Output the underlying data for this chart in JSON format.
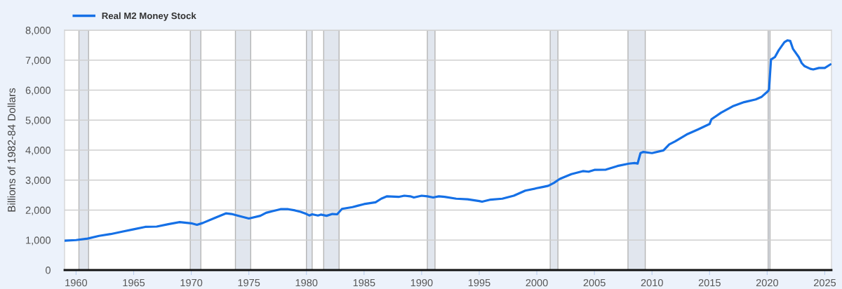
{
  "chart_data": {
    "type": "line",
    "ylabel": "Billions of 1982-84 Dollars",
    "x": [
      "1959-01",
      "1960-01",
      "1961-01",
      "1962-01",
      "1963-01",
      "1964-01",
      "1965-01",
      "1966-01",
      "1967-01",
      "1968-01",
      "1969-01",
      "1970-01",
      "1970-07",
      "1971-01",
      "1972-01",
      "1973-01",
      "1973-07",
      "1974-01",
      "1975-01",
      "1976-01",
      "1976-07",
      "1977-01",
      "1977-10",
      "1978-06",
      "1979-01",
      "1979-07",
      "1980-01",
      "1980-04",
      "1980-07",
      "1981-01",
      "1981-04",
      "1981-10",
      "1982-04",
      "1982-09",
      "1983-02",
      "1984-01",
      "1985-01",
      "1986-01",
      "1986-07",
      "1987-01",
      "1988-01",
      "1988-07",
      "1989-01",
      "1989-05",
      "1990-01",
      "1990-07",
      "1991-01",
      "1991-07",
      "1992-01",
      "1993-01",
      "1994-01",
      "1995-01",
      "1995-04",
      "1996-01",
      "1997-01",
      "1998-01",
      "1999-01",
      "2000-01",
      "2000-07",
      "2001-01",
      "2001-07",
      "2002-01",
      "2003-01",
      "2004-01",
      "2004-07",
      "2005-01",
      "2006-01",
      "2007-01",
      "2008-01",
      "2008-07",
      "2008-10",
      "2009-01",
      "2009-04",
      "2010-01",
      "2011-01",
      "2011-07",
      "2012-01",
      "2013-01",
      "2014-01",
      "2015-01",
      "2015-03",
      "2016-01",
      "2017-01",
      "2018-01",
      "2019-01",
      "2019-07",
      "2020-02",
      "2020-03",
      "2020-05",
      "2020-09",
      "2021-01",
      "2021-07",
      "2021-10",
      "2022-01",
      "2022-04",
      "2022-10",
      "2023-01",
      "2023-04",
      "2023-10",
      "2024-01",
      "2024-07",
      "2025-01",
      "2025-07"
    ],
    "series": [
      {
        "name": "Real M2 Money Stock",
        "color": "#1570e6",
        "values": [
          980,
          1000,
          1050,
          1140,
          1200,
          1280,
          1360,
          1440,
          1450,
          1530,
          1600,
          1560,
          1510,
          1570,
          1730,
          1890,
          1870,
          1820,
          1720,
          1810,
          1910,
          1960,
          2030,
          2030,
          1990,
          1940,
          1870,
          1820,
          1860,
          1820,
          1850,
          1810,
          1870,
          1860,
          2040,
          2100,
          2200,
          2260,
          2380,
          2460,
          2440,
          2480,
          2460,
          2420,
          2480,
          2460,
          2420,
          2460,
          2440,
          2380,
          2360,
          2300,
          2280,
          2350,
          2380,
          2480,
          2650,
          2730,
          2770,
          2810,
          2910,
          3040,
          3200,
          3300,
          3280,
          3340,
          3350,
          3470,
          3550,
          3570,
          3550,
          3900,
          3940,
          3900,
          3990,
          4190,
          4290,
          4520,
          4690,
          4870,
          5030,
          5250,
          5460,
          5600,
          5690,
          5770,
          5970,
          6040,
          7020,
          7100,
          7330,
          7600,
          7660,
          7640,
          7370,
          7100,
          6900,
          6800,
          6710,
          6690,
          6740,
          6740,
          6860
        ]
      }
    ],
    "xlim": [
      "1959-01",
      "2025-08"
    ],
    "xticks": [
      "1960",
      "1965",
      "1970",
      "1975",
      "1980",
      "1985",
      "1990",
      "1995",
      "2000",
      "2005",
      "2010",
      "2015",
      "2020",
      "2025"
    ],
    "ylim": [
      0,
      8000
    ],
    "yticks": [
      0,
      {
        "value": 1000,
        "label": "1,000"
      },
      {
        "value": 2000,
        "label": "2,000"
      },
      {
        "value": 3000,
        "label": "3,000"
      },
      {
        "value": 4000,
        "label": "4,000"
      },
      {
        "value": 5000,
        "label": "5,000"
      },
      {
        "value": 6000,
        "label": "6,000"
      },
      {
        "value": 7000,
        "label": "7,000"
      },
      {
        "value": 8000,
        "label": "8,000"
      }
    ],
    "bands": [
      {
        "axis": "x",
        "from": "1960-04",
        "to": "1961-02",
        "color": "#e1e6ee"
      },
      {
        "axis": "x",
        "from": "1969-12",
        "to": "1970-11",
        "color": "#e1e6ee"
      },
      {
        "axis": "x",
        "from": "1973-11",
        "to": "1975-03",
        "color": "#e1e6ee"
      },
      {
        "axis": "x",
        "from": "1980-01",
        "to": "1980-07",
        "color": "#e1e6ee"
      },
      {
        "axis": "x",
        "from": "1981-07",
        "to": "1982-11",
        "color": "#e1e6ee"
      },
      {
        "axis": "x",
        "from": "1990-07",
        "to": "1991-03",
        "color": "#e1e6ee"
      },
      {
        "axis": "x",
        "from": "2001-03",
        "to": "2001-11",
        "color": "#e1e6ee"
      },
      {
        "axis": "x",
        "from": "2007-12",
        "to": "2009-06",
        "color": "#e1e6ee"
      },
      {
        "axis": "x",
        "from": "2020-02",
        "to": "2020-04",
        "color": "#e1e6ee"
      }
    ],
    "grid": "y",
    "legend": "top left",
    "line_style": "solid"
  }
}
